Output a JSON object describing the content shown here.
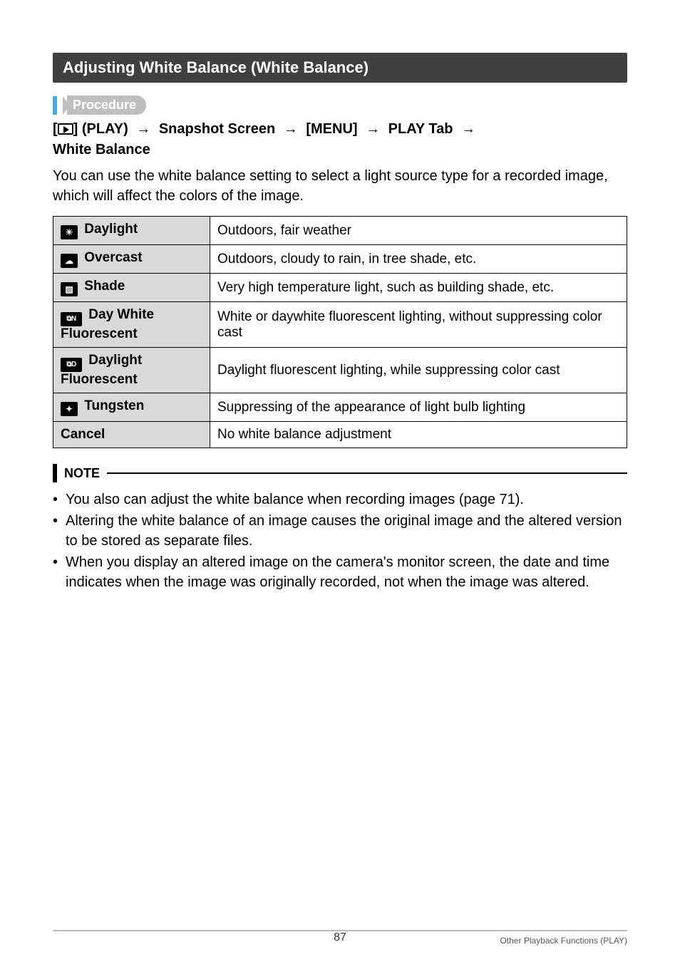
{
  "section_title": "Adjusting White Balance (White Balance)",
  "procedure_label": "Procedure",
  "path": {
    "open_bracket": "[",
    "close_bracket": "]",
    "play_label": " (PLAY) ",
    "snapshot": " Snapshot Screen ",
    "menu": " [MENU] ",
    "play_tab": " PLAY Tab ",
    "arrow": "→",
    "wb": "White Balance"
  },
  "intro_text": "You can use the white balance setting to select a light source type for a recorded image, which will affect the colors of the image.",
  "table": {
    "rows": [
      {
        "icon": "☀",
        "icon_wide": false,
        "label": "Daylight",
        "desc": "Outdoors, fair weather"
      },
      {
        "icon": "☁",
        "icon_wide": false,
        "label": "Overcast",
        "desc": "Outdoors, cloudy to rain, in tree shade, etc."
      },
      {
        "icon": "▧",
        "icon_wide": false,
        "label": "Shade",
        "desc": "Very high temperature light, such as building shade, etc."
      },
      {
        "icon": "⧉N",
        "icon_wide": true,
        "label": "Day White Fluorescent",
        "desc": "White or daywhite fluorescent lighting, without suppressing color cast"
      },
      {
        "icon": "⧉D",
        "icon_wide": true,
        "label": "Daylight Fluorescent",
        "desc": "Daylight fluorescent lighting, while suppressing color cast"
      },
      {
        "icon": "✦",
        "icon_wide": false,
        "label": "Tungsten",
        "desc": "Suppressing of the appearance of light bulb lighting"
      },
      {
        "icon": "",
        "icon_wide": false,
        "label": "Cancel",
        "desc": "No white balance adjustment"
      }
    ]
  },
  "note_label": "NOTE",
  "notes": [
    "You also can adjust the white balance when recording images (page 71).",
    "Altering the white balance of an image causes the original image and the altered version to be stored as separate files.",
    "When you display an altered image on the camera's monitor screen, the date and time indicates when the image was originally recorded, not when the image was altered."
  ],
  "footer": {
    "page_number": "87",
    "section_ref": "Other Playback Functions (PLAY)"
  },
  "colors": {
    "header_bg": "#404040",
    "proc_accent": "#4fa8d8",
    "proc_pill_bg": "#bfbfbf",
    "table_header_bg": "#d9d9d9"
  }
}
